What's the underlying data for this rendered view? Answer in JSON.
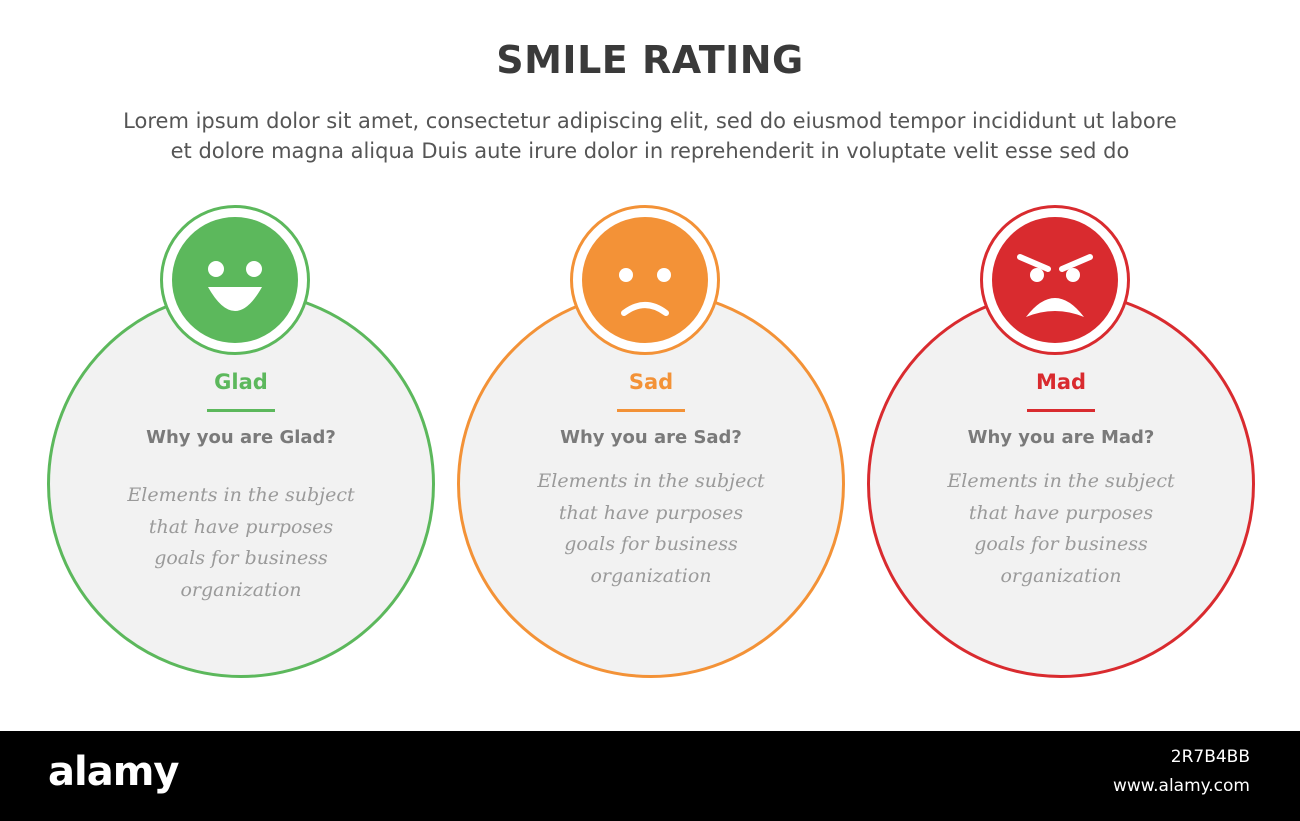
{
  "header": {
    "title": "SMILE RATING",
    "subtitle_line1": "Lorem ipsum dolor sit amet, consectetur adipiscing elit, sed do eiusmod tempor incididunt ut labore",
    "subtitle_line2": "et dolore magna aliqua Duis aute irure dolor in reprehenderit in voluptate velit esse sed do"
  },
  "cards": [
    {
      "label": "Glad",
      "question": "Why you are Glad?",
      "desc_lines": [
        "Elements in the subject",
        "that have purposes",
        "goals for business",
        "organization"
      ],
      "color": "#5cb85c",
      "face": "happy-face-icon"
    },
    {
      "label": "Sad",
      "question": "Why you are Sad?",
      "desc_lines": [
        "Elements in the subject",
        "that have purposes",
        "goals for business",
        "organization"
      ],
      "color": "#f39237",
      "face": "sad-face-icon"
    },
    {
      "label": "Mad",
      "question": "Why you are Mad?",
      "desc_lines": [
        "Elements in the subject",
        "that have purposes",
        "goals for business",
        "organization"
      ],
      "color": "#d92b2f",
      "face": "angry-face-icon"
    }
  ],
  "footer": {
    "brand": "alamy",
    "image_id": "2R7B4BB",
    "url": "www.alamy.com"
  }
}
